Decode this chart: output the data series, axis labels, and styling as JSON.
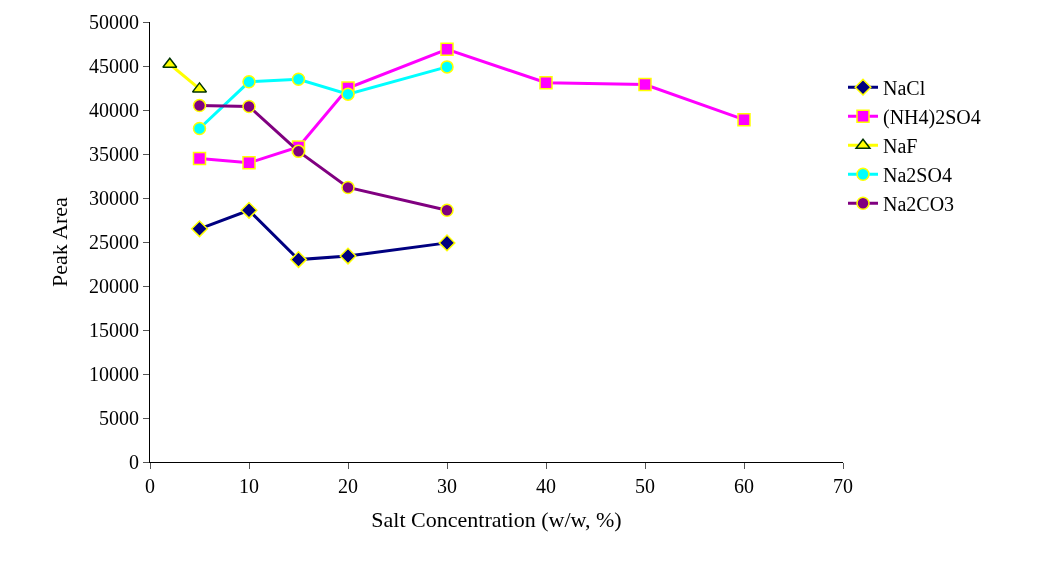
{
  "chart_data": {
    "type": "line",
    "xlabel": "Salt Concentration (w/w, %)",
    "ylabel": "Peak Area",
    "xlim": [
      0,
      70
    ],
    "xticks": [
      0,
      10,
      20,
      30,
      40,
      50,
      60,
      70
    ],
    "ylim": [
      0,
      50000
    ],
    "yticks": [
      0,
      5000,
      10000,
      15000,
      20000,
      25000,
      30000,
      35000,
      40000,
      45000,
      50000
    ],
    "legend": "right",
    "series": [
      {
        "name": "NaCl",
        "color": "#000080",
        "marker": "diamond",
        "x": [
          5,
          10,
          15,
          20,
          30
        ],
        "values": [
          26500,
          28600,
          23000,
          23400,
          24900
        ]
      },
      {
        "name": "(NH4)2SO4",
        "color": "#ff00ff",
        "marker": "square",
        "x": [
          5,
          10,
          15,
          20,
          30,
          40,
          50,
          60
        ],
        "values": [
          34500,
          34000,
          35800,
          42500,
          46900,
          43100,
          42900,
          38900
        ]
      },
      {
        "name": "NaF",
        "color": "#ffff00",
        "marker": "triangle",
        "x": [
          2,
          5
        ],
        "values": [
          45200,
          42400
        ]
      },
      {
        "name": "Na2SO4",
        "color": "#00ffff",
        "marker": "circle",
        "x": [
          5,
          10,
          15,
          20,
          30
        ],
        "values": [
          37900,
          43200,
          43500,
          41800,
          44900
        ]
      },
      {
        "name": "Na2CO3",
        "color": "#800080",
        "marker": "circle",
        "x": [
          5,
          10,
          15,
          20,
          30
        ],
        "values": [
          40500,
          40400,
          35300,
          31200,
          28600
        ]
      }
    ]
  }
}
